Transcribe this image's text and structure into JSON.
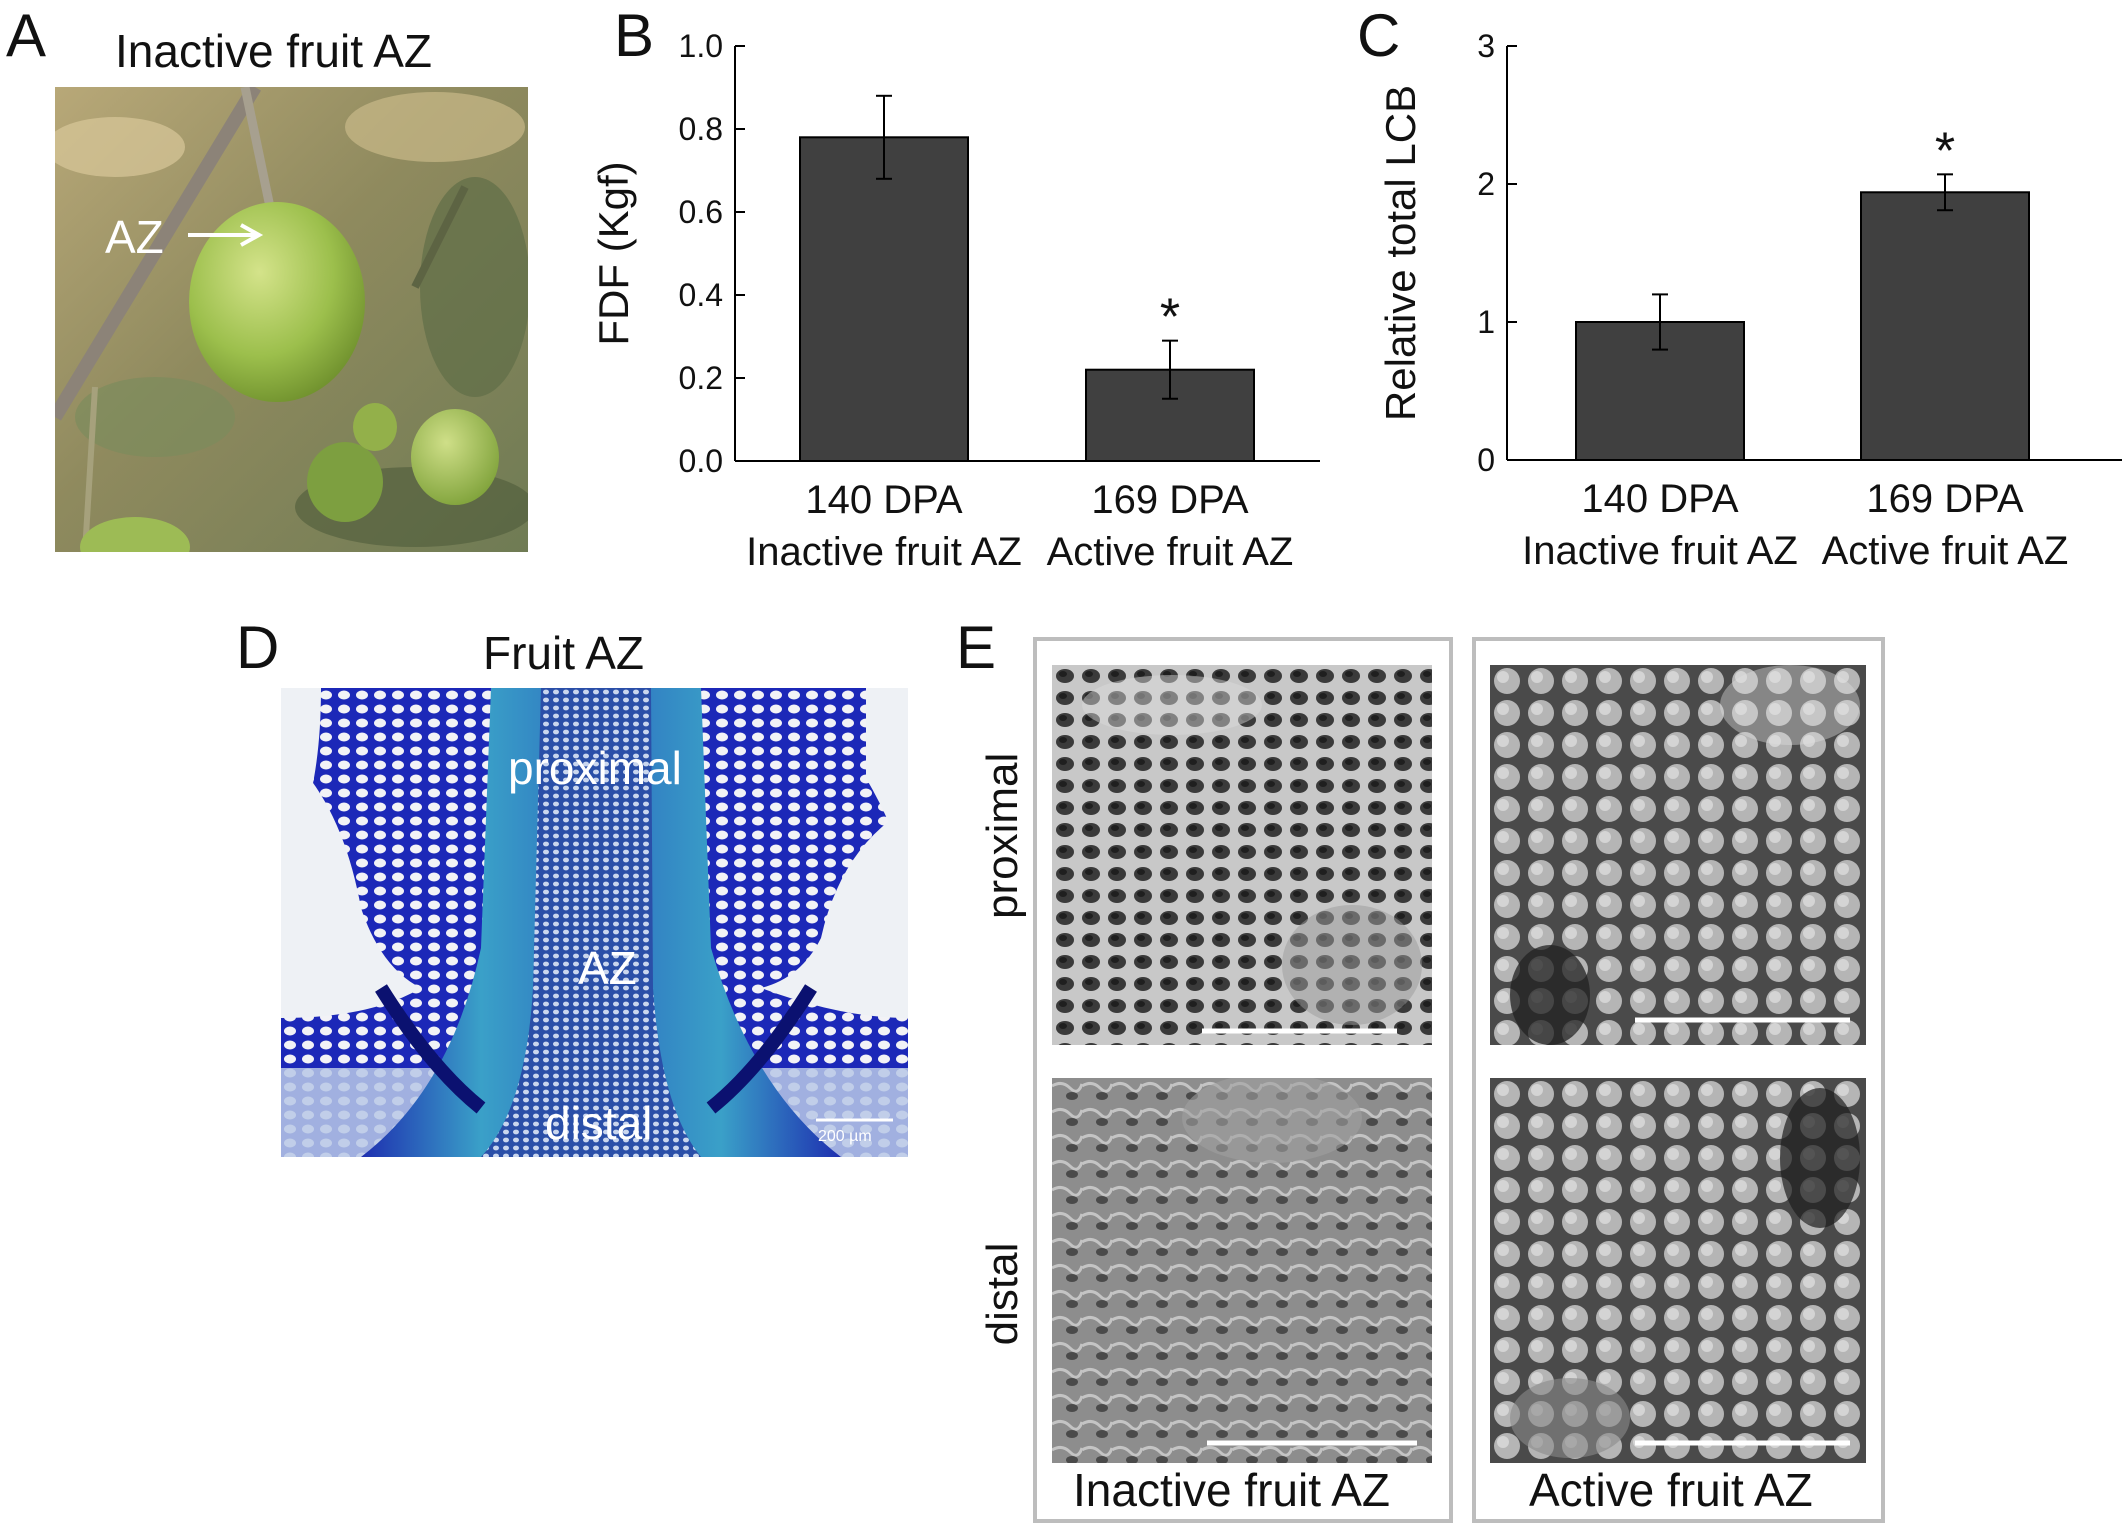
{
  "panels": {
    "A": {
      "letter": "A",
      "title": "Inactive fruit AZ",
      "arrow_label": "AZ"
    },
    "B": {
      "letter": "B"
    },
    "C": {
      "letter": "C"
    },
    "D": {
      "letter": "D",
      "title": "Fruit AZ",
      "label_proximal": "proximal",
      "label_az": "AZ",
      "label_distal": "distal",
      "scale_bar": "200 µm"
    },
    "E": {
      "letter": "E",
      "row_proximal": "proximal",
      "row_distal": "distal",
      "col_inactive": "Inactive fruit AZ",
      "col_active": "Active fruit AZ"
    }
  },
  "chart_data": [
    {
      "type": "bar",
      "panel": "B",
      "ylabel": "FDF (Kgf)",
      "ylim": [
        0.0,
        1.0
      ],
      "yticks": [
        "0.0",
        "0.2",
        "0.4",
        "0.6",
        "0.8",
        "1.0"
      ],
      "categories": [
        "140 DPA",
        "169 DPA"
      ],
      "category_sublabels": [
        "Inactive fruit AZ",
        "Active fruit AZ"
      ],
      "values": [
        0.78,
        0.22
      ],
      "errors": [
        0.1,
        0.07
      ],
      "significance": [
        "",
        "*"
      ],
      "bar_color": "#404040",
      "grid": false
    },
    {
      "type": "bar",
      "panel": "C",
      "ylabel": "Relative total LCB",
      "ylim": [
        0,
        3
      ],
      "yticks": [
        "0",
        "1",
        "2",
        "3"
      ],
      "categories": [
        "140 DPA",
        "169 DPA"
      ],
      "category_sublabels": [
        "Inactive fruit AZ",
        "Active fruit AZ"
      ],
      "values": [
        1.0,
        1.94
      ],
      "errors": [
        0.2,
        0.13
      ],
      "significance": [
        "",
        "*"
      ],
      "bar_color": "#404040",
      "grid": false
    }
  ]
}
